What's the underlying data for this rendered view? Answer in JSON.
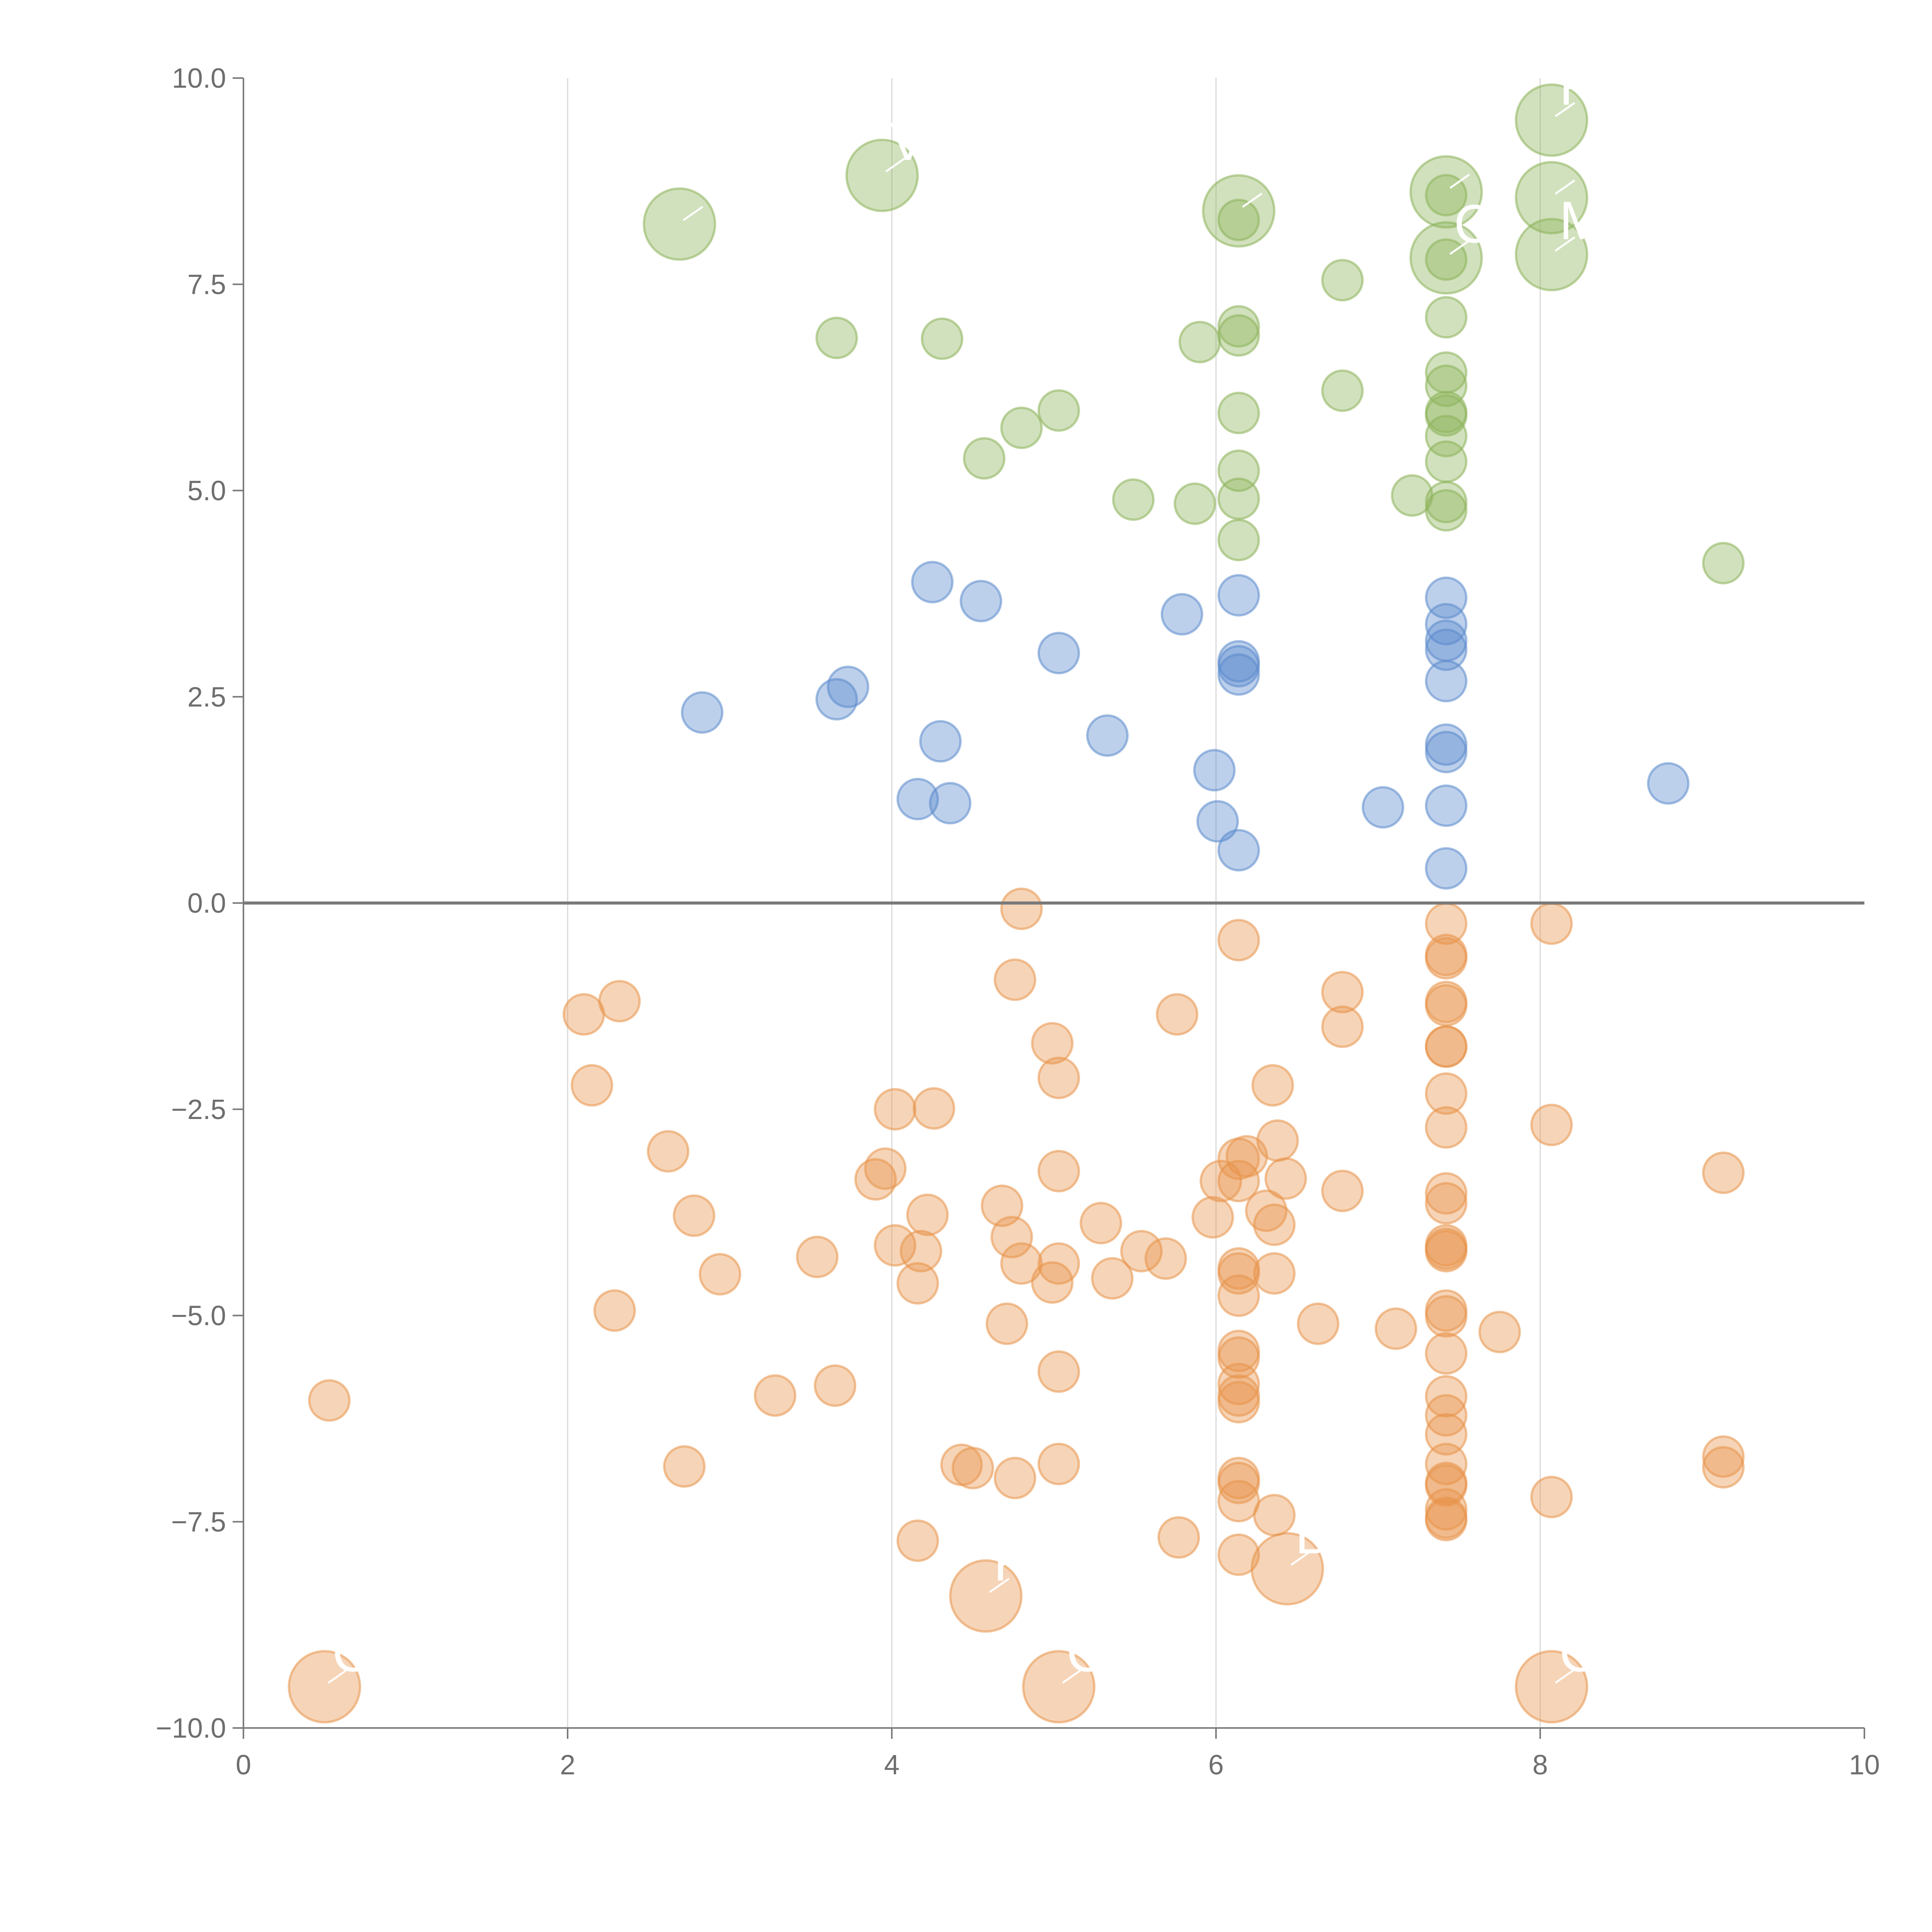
{
  "chart_data": {
    "type": "scatter",
    "title": "",
    "xlabel": "",
    "ylabel": "",
    "xlim": [
      0,
      10
    ],
    "ylim": [
      -10,
      10
    ],
    "x_ticks": [
      "0",
      "2",
      "4",
      "6",
      "8",
      "10"
    ],
    "y_ticks": [
      "−10.0",
      "−7.5",
      "−5.0",
      "−2.5",
      "0.0",
      "2.5",
      "5.0",
      "7.5",
      "10.0"
    ],
    "x_tick_values": [
      0,
      2,
      4,
      6,
      8,
      10
    ],
    "y_tick_values": [
      -10,
      -7.5,
      -5,
      -2.5,
      0,
      2.5,
      5,
      7.5,
      10
    ],
    "vertical_grid_at": [
      2,
      4,
      6,
      8
    ],
    "reference_line_y": 0,
    "series": [
      {
        "name": "green",
        "color": "#8db359",
        "points": [
          [
            3.66,
            6.85
          ],
          [
            4.31,
            6.84
          ],
          [
            4.57,
            5.39
          ],
          [
            4.8,
            5.76
          ],
          [
            5.03,
            5.97
          ],
          [
            5.49,
            4.89
          ],
          [
            5.87,
            4.84
          ],
          [
            5.9,
            6.8
          ],
          [
            6.14,
            6.99
          ],
          [
            6.14,
            6.88
          ],
          [
            6.14,
            5.94
          ],
          [
            6.14,
            5.24
          ],
          [
            6.14,
            4.9
          ],
          [
            6.14,
            4.4
          ],
          [
            6.14,
            8.28
          ],
          [
            6.78,
            7.55
          ],
          [
            6.78,
            6.21
          ],
          [
            7.21,
            4.94
          ],
          [
            7.42,
            8.58
          ],
          [
            7.42,
            7.8
          ],
          [
            7.42,
            7.1
          ],
          [
            7.42,
            6.43
          ],
          [
            7.42,
            6.27
          ],
          [
            7.42,
            5.95
          ],
          [
            7.42,
            5.91
          ],
          [
            7.42,
            5.66
          ],
          [
            7.42,
            5.35
          ],
          [
            7.42,
            4.86
          ],
          [
            7.42,
            4.76
          ],
          [
            9.13,
            4.12
          ]
        ]
      },
      {
        "name": "blue",
        "color": "#5b8acc",
        "points": [
          [
            2.83,
            2.31
          ],
          [
            3.66,
            2.47
          ],
          [
            3.73,
            2.62
          ],
          [
            4.16,
            1.26
          ],
          [
            4.25,
            3.89
          ],
          [
            4.3,
            1.96
          ],
          [
            4.36,
            1.21
          ],
          [
            4.55,
            3.66
          ],
          [
            5.03,
            3.03
          ],
          [
            5.33,
            2.03
          ],
          [
            5.79,
            3.5
          ],
          [
            5.99,
            1.61
          ],
          [
            6.01,
            0.99
          ],
          [
            6.14,
            3.73
          ],
          [
            6.14,
            2.93
          ],
          [
            6.14,
            2.87
          ],
          [
            6.14,
            2.77
          ],
          [
            6.14,
            0.64
          ],
          [
            7.03,
            1.16
          ],
          [
            7.42,
            3.7
          ],
          [
            7.42,
            3.38
          ],
          [
            7.42,
            3.18
          ],
          [
            7.42,
            3.07
          ],
          [
            7.42,
            2.69
          ],
          [
            7.42,
            1.92
          ],
          [
            7.42,
            1.83
          ],
          [
            7.42,
            1.18
          ],
          [
            7.42,
            0.42
          ],
          [
            8.79,
            1.45
          ]
        ]
      },
      {
        "name": "orange",
        "color": "#e8934a",
        "points": [
          [
            0.53,
            -6.03
          ],
          [
            2.1,
            -1.35
          ],
          [
            2.15,
            -2.21
          ],
          [
            2.32,
            -1.19
          ],
          [
            2.29,
            -4.94
          ],
          [
            2.62,
            -3.01
          ],
          [
            2.72,
            -6.83
          ],
          [
            2.78,
            -3.79
          ],
          [
            2.94,
            -4.5
          ],
          [
            3.28,
            -5.97
          ],
          [
            3.54,
            -4.29
          ],
          [
            3.65,
            -5.85
          ],
          [
            3.9,
            -3.35
          ],
          [
            3.96,
            -3.22
          ],
          [
            4.02,
            -2.5
          ],
          [
            4.02,
            -4.15
          ],
          [
            4.16,
            -7.73
          ],
          [
            4.16,
            -4.61
          ],
          [
            4.18,
            -4.22
          ],
          [
            4.22,
            -3.78
          ],
          [
            4.26,
            -2.49
          ],
          [
            4.43,
            -6.81
          ],
          [
            4.5,
            -6.85
          ],
          [
            4.68,
            -3.67
          ],
          [
            4.71,
            -5.1
          ],
          [
            4.74,
            -4.05
          ],
          [
            4.76,
            -0.93
          ],
          [
            4.76,
            -6.97
          ],
          [
            4.8,
            -4.37
          ],
          [
            4.8,
            -0.07
          ],
          [
            4.99,
            -1.7
          ],
          [
            4.99,
            -4.6
          ],
          [
            5.03,
            -2.12
          ],
          [
            5.03,
            -3.25
          ],
          [
            5.03,
            -4.37
          ],
          [
            5.03,
            -5.68
          ],
          [
            5.03,
            -6.8
          ],
          [
            5.29,
            -3.88
          ],
          [
            5.36,
            -4.55
          ],
          [
            5.54,
            -4.22
          ],
          [
            5.69,
            -4.31
          ],
          [
            5.76,
            -1.35
          ],
          [
            5.77,
            -7.69
          ],
          [
            5.98,
            -3.81
          ],
          [
            6.03,
            -3.37
          ],
          [
            6.14,
            -0.45
          ],
          [
            6.14,
            -3.1
          ],
          [
            6.14,
            -3.37
          ],
          [
            6.14,
            -4.43
          ],
          [
            6.14,
            -4.49
          ],
          [
            6.14,
            -4.76
          ],
          [
            6.14,
            -5.43
          ],
          [
            6.14,
            -5.51
          ],
          [
            6.14,
            -5.83
          ],
          [
            6.14,
            -5.97
          ],
          [
            6.14,
            -6.05
          ],
          [
            6.14,
            -6.97
          ],
          [
            6.14,
            -7.03
          ],
          [
            6.14,
            -7.25
          ],
          [
            6.14,
            -7.9
          ],
          [
            6.19,
            -3.07
          ],
          [
            6.31,
            -3.73
          ],
          [
            6.35,
            -2.21
          ],
          [
            6.36,
            -3.9
          ],
          [
            6.36,
            -4.49
          ],
          [
            6.36,
            -7.42
          ],
          [
            6.38,
            -2.88
          ],
          [
            6.43,
            -3.34
          ],
          [
            6.63,
            -5.1
          ],
          [
            6.78,
            -1.08
          ],
          [
            6.78,
            -1.5
          ],
          [
            6.78,
            -3.49
          ],
          [
            7.11,
            -5.16
          ],
          [
            7.42,
            -0.25
          ],
          [
            7.42,
            -0.63
          ],
          [
            7.42,
            -0.67
          ],
          [
            7.42,
            -1.2
          ],
          [
            7.42,
            -1.24
          ],
          [
            7.42,
            -1.74
          ],
          [
            7.42,
            -1.74
          ],
          [
            7.42,
            -2.31
          ],
          [
            7.42,
            -2.72
          ],
          [
            7.42,
            -3.52
          ],
          [
            7.42,
            -3.64
          ],
          [
            7.42,
            -4.15
          ],
          [
            7.42,
            -4.19
          ],
          [
            7.42,
            -4.22
          ],
          [
            7.42,
            -4.94
          ],
          [
            7.42,
            -5.01
          ],
          [
            7.42,
            -5.46
          ],
          [
            7.42,
            -5.98
          ],
          [
            7.42,
            -6.21
          ],
          [
            7.42,
            -6.44
          ],
          [
            7.42,
            -6.8
          ],
          [
            7.42,
            -7.03
          ],
          [
            7.42,
            -7.06
          ],
          [
            7.42,
            -7.35
          ],
          [
            7.42,
            -7.45
          ],
          [
            7.42,
            -7.48
          ],
          [
            7.75,
            -5.2
          ],
          [
            8.07,
            -0.25
          ],
          [
            8.07,
            -2.69
          ],
          [
            8.07,
            -7.2
          ],
          [
            9.13,
            -3.27
          ],
          [
            9.13,
            -6.71
          ],
          [
            9.13,
            -6.84
          ]
        ]
      }
    ],
    "highlighted_points": [
      {
        "label": "C",
        "color": "#e8934a",
        "x": 0.5,
        "y": -9.5
      },
      {
        "label": "K",
        "color": "#e8934a",
        "x": 4.58,
        "y": -8.4
      },
      {
        "label": "C",
        "color": "#e8934a",
        "x": 5.03,
        "y": -9.5
      },
      {
        "label": "B",
        "color": "#e8934a",
        "x": 6.44,
        "y": -8.07
      },
      {
        "label": "C",
        "color": "#e8934a",
        "x": 8.07,
        "y": -9.5
      },
      {
        "label": "",
        "color": "#8db359",
        "x": 2.69,
        "y": 8.23
      },
      {
        "label": "V",
        "color": "#8db359",
        "x": 3.94,
        "y": 8.82
      },
      {
        "label": "",
        "color": "#8db359",
        "x": 6.14,
        "y": 8.39
      },
      {
        "label": "C",
        "color": "#8db359",
        "x": 7.42,
        "y": 7.82
      },
      {
        "label": "",
        "color": "#8db359",
        "x": 7.42,
        "y": 8.62
      },
      {
        "label": "R",
        "color": "#8db359",
        "x": 8.07,
        "y": 9.49
      },
      {
        "label": "",
        "color": "#8db359",
        "x": 8.07,
        "y": 8.55
      },
      {
        "label": "M",
        "color": "#8db359",
        "x": 8.07,
        "y": 7.86
      }
    ]
  }
}
